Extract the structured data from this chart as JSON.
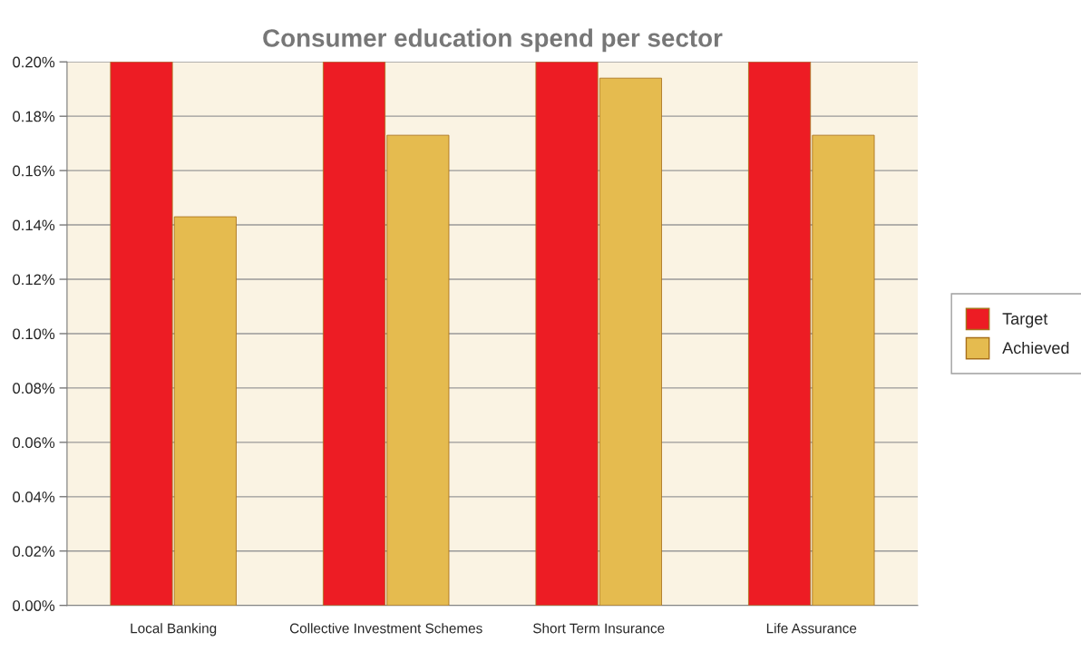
{
  "chart_data": {
    "type": "bar",
    "title": "Consumer education spend per sector",
    "categories": [
      "Local Banking",
      "Collective Investment Schemes",
      "Short Term Insurance",
      "Life Assurance"
    ],
    "series": [
      {
        "name": "Target",
        "color": "#ed1c24",
        "values": [
          0.2,
          0.2,
          0.2,
          0.2
        ]
      },
      {
        "name": "Achieved",
        "color": "#e5bb4f",
        "values": [
          0.143,
          0.173,
          0.194,
          0.173
        ]
      }
    ],
    "ylim": [
      0,
      0.2
    ],
    "yticks": [
      {
        "value": 0,
        "label": "0.00%"
      },
      {
        "value": 0.02,
        "label": "0.02%"
      },
      {
        "value": 0.04,
        "label": "0.04%"
      },
      {
        "value": 0.06,
        "label": "0.06%"
      },
      {
        "value": 0.08,
        "label": "0.08%"
      },
      {
        "value": 0.1,
        "label": "0.10%"
      },
      {
        "value": 0.12,
        "label": "0.12%"
      },
      {
        "value": 0.14,
        "label": "0.14%"
      },
      {
        "value": 0.16,
        "label": "0.16%"
      },
      {
        "value": 0.18,
        "label": "0.18%"
      },
      {
        "value": 0.2,
        "label": "0.20%"
      }
    ],
    "grid": "y",
    "legend": "right"
  }
}
